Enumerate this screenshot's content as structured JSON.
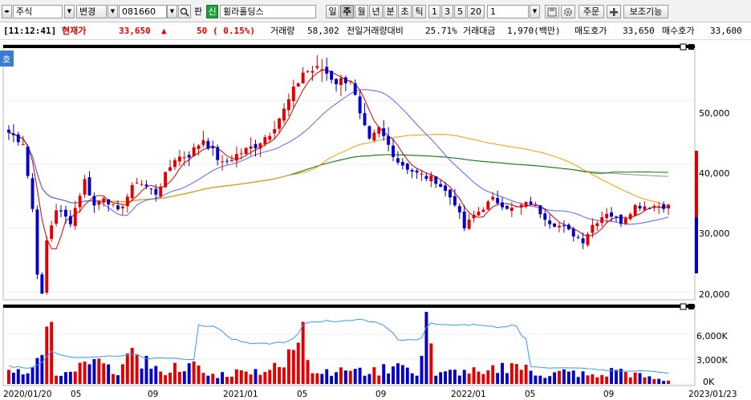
{
  "toolbar": {
    "market": "주식",
    "change_label": "변경",
    "code": "081660",
    "search_icon": "magnifier-icon",
    "pan_label": "판",
    "credit_badge": "신",
    "stock_name": "휠라홀딩스",
    "period_tabs": [
      "일",
      "주",
      "월",
      "년",
      "분",
      "초",
      "틱"
    ],
    "selected_period": "주",
    "interval_buttons": [
      "1",
      "3",
      "5",
      "20"
    ],
    "interval_value": "1",
    "order_label": "주문",
    "aux_label": "보조기능"
  },
  "info": {
    "time": "[11:12:41]",
    "price_label": "현재가",
    "price": "33,650",
    "change_arrow": "▲",
    "change": "50",
    "change_pct": "( 0.15%)",
    "volume_label": "거래량",
    "volume": "58,302",
    "vol_ratio_label": "전일거래량대비",
    "vol_ratio": "25.71%",
    "amount_label": "거래대금",
    "amount": "1,970(백만)",
    "ask_label": "매도호가",
    "ask": "33,650",
    "bid_label": "매수호가",
    "bid": "33,600"
  },
  "chart_data": {
    "type": "candlestick",
    "price_axis_labels": [
      "50,000",
      "40,000",
      "30,000",
      "20,000"
    ],
    "price_ticks": [
      50000,
      40000,
      30000,
      20000
    ],
    "price_range": [
      19000,
      58000
    ],
    "volume_axis_labels": [
      "6,000K",
      "3,000K",
      "0K"
    ],
    "volume_ticks": [
      6000,
      3000,
      0
    ],
    "volume_range": [
      0,
      9000
    ],
    "date_labels": [
      "2020/01/20",
      "05",
      "09",
      "2021/01",
      "05",
      "09",
      "2022/01",
      "05",
      "09",
      "2023/01/23"
    ],
    "price_keypoints": [
      [
        0,
        45000
      ],
      [
        3,
        43500
      ],
      [
        5,
        33000
      ],
      [
        6,
        23000
      ],
      [
        7,
        19500
      ],
      [
        8,
        28000
      ],
      [
        10,
        33000
      ],
      [
        13,
        31000
      ],
      [
        16,
        37500
      ],
      [
        18,
        33500
      ],
      [
        20,
        35000
      ],
      [
        23,
        32500
      ],
      [
        27,
        37500
      ],
      [
        31,
        35500
      ],
      [
        35,
        41000
      ],
      [
        38,
        41500
      ],
      [
        41,
        44000
      ],
      [
        45,
        40000
      ],
      [
        48,
        41500
      ],
      [
        52,
        43000
      ],
      [
        55,
        45000
      ],
      [
        58,
        48500
      ],
      [
        62,
        54500
      ],
      [
        66,
        55000
      ],
      [
        69,
        53000
      ],
      [
        72,
        53500
      ],
      [
        74,
        47500
      ],
      [
        76,
        43500
      ],
      [
        78,
        45500
      ],
      [
        82,
        40500
      ],
      [
        86,
        38500
      ],
      [
        90,
        37500
      ],
      [
        94,
        34000
      ],
      [
        96,
        30000
      ],
      [
        98,
        32000
      ],
      [
        102,
        34500
      ],
      [
        106,
        33000
      ],
      [
        110,
        34000
      ],
      [
        114,
        31000
      ],
      [
        117,
        30000
      ],
      [
        119,
        29000
      ],
      [
        121,
        28000
      ],
      [
        123,
        30500
      ],
      [
        126,
        32500
      ],
      [
        129,
        31000
      ],
      [
        132,
        33500
      ],
      [
        136,
        33500
      ],
      [
        139,
        33500
      ]
    ],
    "volume_keypoints": [
      [
        0,
        1700
      ],
      [
        5,
        2000
      ],
      [
        7,
        3500
      ],
      [
        9,
        7500
      ],
      [
        10,
        1000
      ],
      [
        14,
        1500
      ],
      [
        18,
        3000
      ],
      [
        22,
        1200
      ],
      [
        27,
        3500
      ],
      [
        32,
        1500
      ],
      [
        38,
        2500
      ],
      [
        42,
        1000
      ],
      [
        50,
        1500
      ],
      [
        58,
        2000
      ],
      [
        62,
        7500
      ],
      [
        64,
        1300
      ],
      [
        70,
        2000
      ],
      [
        76,
        1200
      ],
      [
        82,
        2500
      ],
      [
        86,
        1000
      ],
      [
        88,
        8700
      ],
      [
        90,
        1000
      ],
      [
        96,
        1700
      ],
      [
        100,
        1200
      ],
      [
        106,
        2500
      ],
      [
        112,
        1000
      ],
      [
        118,
        1500
      ],
      [
        124,
        800
      ],
      [
        128,
        1700
      ],
      [
        134,
        800
      ],
      [
        139,
        400
      ]
    ],
    "ma_periods": [
      5,
      20,
      60,
      120
    ],
    "colors": {
      "up": "#e00000",
      "down": "#0000c8",
      "ma5": "#d00000",
      "ma20": "#6060ff",
      "ma60": "#f0a000",
      "ma120": "#008000",
      "ma240": "#909090",
      "volume_ma": "#3399ff"
    },
    "current_price": 33650,
    "weeks": 140
  }
}
